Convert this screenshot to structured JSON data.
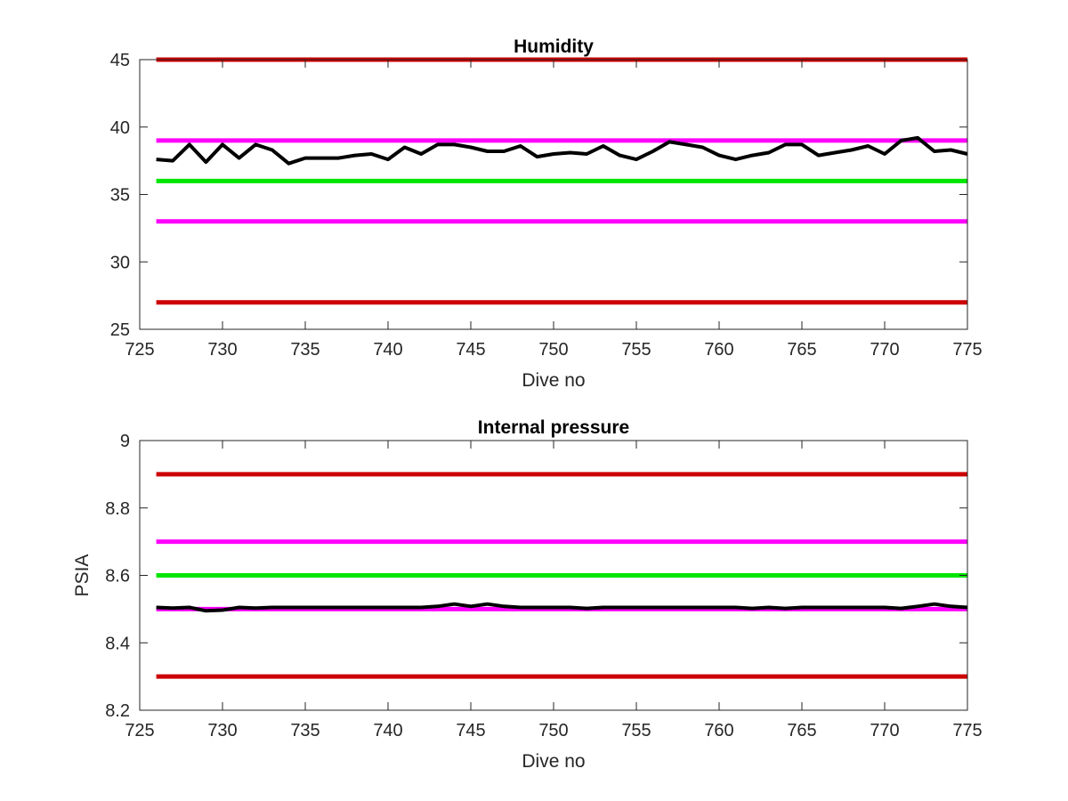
{
  "chart_data": [
    {
      "type": "line",
      "title": "Humidity",
      "xlabel": "Dive no",
      "ylabel": "",
      "xlim": [
        725,
        775
      ],
      "ylim": [
        25,
        45
      ],
      "xticks": [
        725,
        730,
        735,
        740,
        745,
        750,
        755,
        760,
        765,
        770,
        775
      ],
      "yticks": [
        25,
        30,
        35,
        40,
        45
      ],
      "grid": false,
      "legend": "none",
      "threshold_lines": [
        {
          "y": 45,
          "color": "#cc0000"
        },
        {
          "y": 39,
          "color": "#ff00ff"
        },
        {
          "y": 36,
          "color": "#00e600"
        },
        {
          "y": 33,
          "color": "#ff00ff"
        },
        {
          "y": 27,
          "color": "#cc0000"
        }
      ],
      "series": [
        {
          "color": "#000000",
          "x": [
            726,
            727,
            728,
            729,
            730,
            731,
            732,
            733,
            734,
            735,
            736,
            737,
            738,
            739,
            740,
            741,
            742,
            743,
            744,
            745,
            746,
            747,
            748,
            749,
            750,
            751,
            752,
            753,
            754,
            755,
            756,
            757,
            758,
            759,
            760,
            761,
            762,
            763,
            764,
            765,
            766,
            767,
            768,
            769,
            770,
            771,
            772,
            773,
            774,
            775
          ],
          "y": [
            37.6,
            37.5,
            38.7,
            37.4,
            38.7,
            37.7,
            38.7,
            38.3,
            37.3,
            37.7,
            37.7,
            37.7,
            37.9,
            38.0,
            37.6,
            38.5,
            38.0,
            38.7,
            38.7,
            38.5,
            38.2,
            38.2,
            38.6,
            37.8,
            38.0,
            38.1,
            38.0,
            38.6,
            37.9,
            37.6,
            38.2,
            38.9,
            38.7,
            38.5,
            37.9,
            37.6,
            37.9,
            38.1,
            38.7,
            38.7,
            37.9,
            38.1,
            38.3,
            38.6,
            38.0,
            39.0,
            39.2,
            38.2,
            38.3,
            38.0
          ]
        }
      ]
    },
    {
      "type": "line",
      "title": "Internal pressure",
      "xlabel": "Dive no",
      "ylabel": "PSIA",
      "xlim": [
        725,
        775
      ],
      "ylim": [
        8.2,
        9
      ],
      "xticks": [
        725,
        730,
        735,
        740,
        745,
        750,
        755,
        760,
        765,
        770,
        775
      ],
      "yticks": [
        8.2,
        8.4,
        8.6,
        8.8,
        9
      ],
      "grid": false,
      "legend": "none",
      "threshold_lines": [
        {
          "y": 8.9,
          "color": "#cc0000"
        },
        {
          "y": 8.7,
          "color": "#ff00ff"
        },
        {
          "y": 8.6,
          "color": "#00e600"
        },
        {
          "y": 8.5,
          "color": "#ff00ff"
        },
        {
          "y": 8.3,
          "color": "#cc0000"
        }
      ],
      "series": [
        {
          "color": "#000000",
          "x": [
            726,
            727,
            728,
            729,
            730,
            731,
            732,
            733,
            734,
            735,
            736,
            737,
            738,
            739,
            740,
            741,
            742,
            743,
            744,
            745,
            746,
            747,
            748,
            749,
            750,
            751,
            752,
            753,
            754,
            755,
            756,
            757,
            758,
            759,
            760,
            761,
            762,
            763,
            764,
            765,
            766,
            767,
            768,
            769,
            770,
            771,
            772,
            773,
            774,
            775
          ],
          "y": [
            8.505,
            8.503,
            8.505,
            8.495,
            8.497,
            8.505,
            8.503,
            8.505,
            8.505,
            8.505,
            8.505,
            8.505,
            8.505,
            8.505,
            8.505,
            8.505,
            8.505,
            8.508,
            8.515,
            8.508,
            8.515,
            8.508,
            8.505,
            8.505,
            8.505,
            8.505,
            8.502,
            8.505,
            8.505,
            8.505,
            8.505,
            8.505,
            8.505,
            8.505,
            8.505,
            8.505,
            8.502,
            8.505,
            8.502,
            8.505,
            8.505,
            8.505,
            8.505,
            8.505,
            8.505,
            8.502,
            8.508,
            8.515,
            8.508,
            8.505
          ]
        }
      ]
    }
  ]
}
